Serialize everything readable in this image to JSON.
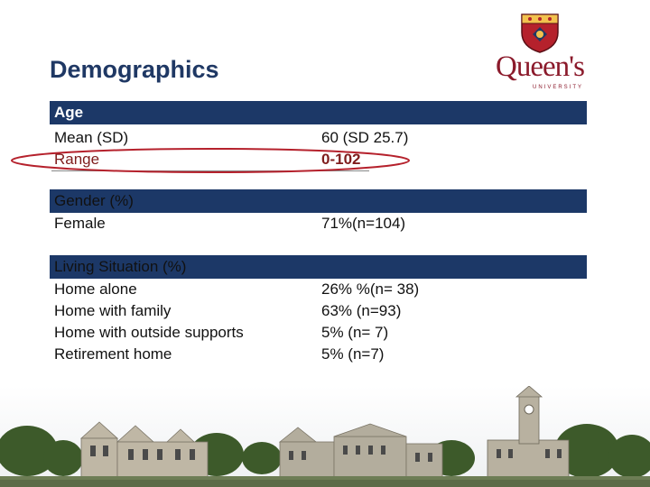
{
  "slide": {
    "title": "Demographics"
  },
  "logo": {
    "wordmark": "Queen's",
    "subtitle": "UNIVERSITY"
  },
  "sections": {
    "age": {
      "header": "Age",
      "rows": [
        {
          "label": "Mean (SD)",
          "value": "60 (SD 25.7)"
        },
        {
          "label": "Range",
          "value": "0-102"
        }
      ]
    },
    "gender": {
      "header": "Gender (%)",
      "rows": [
        {
          "label": "Female",
          "value": "71%(n=104)"
        }
      ]
    },
    "living": {
      "header": "Living Situation (%)",
      "rows": [
        {
          "label": "Home alone",
          "value": "26% %(n= 38)"
        },
        {
          "label": "Home with family",
          "value": "63% (n=93)"
        },
        {
          "label": "Home with outside supports",
          "value": "5% (n= 7)"
        },
        {
          "label": "Retirement home",
          "value": "5% (n=7)"
        }
      ]
    }
  },
  "colors": {
    "header_bar": "#1c3867",
    "title": "#1f3864",
    "highlight": "#7f1d1d",
    "ellipse": "#b5212c",
    "brand": "#8b1a2b"
  }
}
